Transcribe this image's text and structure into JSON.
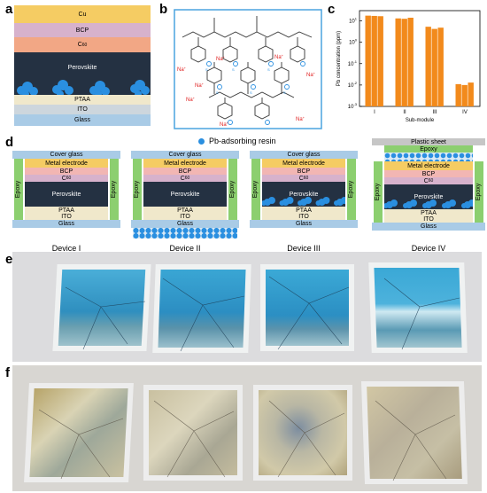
{
  "panels": {
    "a": "a",
    "b": "b",
    "c": "c",
    "d": "d",
    "e": "e",
    "f": "f"
  },
  "panel_a": {
    "layers": [
      "Cu",
      "BCP",
      "C",
      "Perovskite",
      "PTAA",
      "ITO",
      "Glass"
    ],
    "c60_sub": "60",
    "colors": {
      "cu": "#f5cc63",
      "bcp": "#d7b2cc",
      "c60": "#f2a785",
      "perovskite": "#243142",
      "ptaa": "#f0e8cb",
      "ito": "#cdd6dd",
      "glass": "#a9cbe6",
      "resin": "#2a8fe0"
    }
  },
  "panel_b": {
    "na_label": "Na",
    "na_charge": "+"
  },
  "chart_data": {
    "type": "bar",
    "categories": [
      "I",
      "II",
      "III",
      "IV"
    ],
    "series": [
      {
        "values": [
          17.5,
          13.0,
          5.3,
          0.011
        ]
      },
      {
        "values": [
          17.0,
          12.5,
          4.2,
          0.01
        ]
      },
      {
        "values": [
          16.5,
          14.0,
          4.8,
          0.013
        ]
      }
    ],
    "xlabel": "Sub-module",
    "ylabel": "Pb concentration (ppm)",
    "yscale": "log",
    "ylim": [
      0.001,
      30
    ],
    "yticks": [
      "10",
      "10",
      "10",
      "10",
      "10"
    ],
    "ytick_exps": [
      "-3",
      "-2",
      "-1",
      "0",
      "1"
    ],
    "bar_color": "#f28a1c"
  },
  "panel_d": {
    "legend": "Pb-adsorbing resin",
    "devices": [
      {
        "name": "Device I",
        "cover": "Cover glass",
        "metal": "Metal electrode",
        "bcp": "BCP",
        "c60": "C",
        "perovskite": "Perovskite",
        "ptaa": "PTAA",
        "ito": "ITO",
        "glass": "Glass",
        "epoxy": "Epoxy"
      },
      {
        "name": "Device II",
        "cover": "Cover glass",
        "metal": "Metal electrode",
        "bcp": "BCP",
        "c60": "C",
        "perovskite": "Perovskite",
        "ptaa": "PTAA",
        "ito": "ITO",
        "glass": "Glass",
        "epoxy": "Epoxy"
      },
      {
        "name": "Device III",
        "cover": "Cover glass",
        "metal": "Metal electrode",
        "bcp": "BCP",
        "c60": "C",
        "perovskite": "Perovskite",
        "ptaa": "PTAA",
        "ito": "ITO",
        "glass": "Glass",
        "epoxy": "Epoxy"
      },
      {
        "name": "Device IV",
        "plastic": "Plastic sheet",
        "epoxy_top": "Epoxy",
        "metal": "Metal electrode",
        "bcp": "BCP",
        "c60": "C",
        "perovskite": "Perovskite",
        "ptaa": "PTAA",
        "ito": "ITO",
        "glass": "Glass",
        "epoxy": "Epoxy"
      }
    ],
    "c60_sub": "60"
  }
}
